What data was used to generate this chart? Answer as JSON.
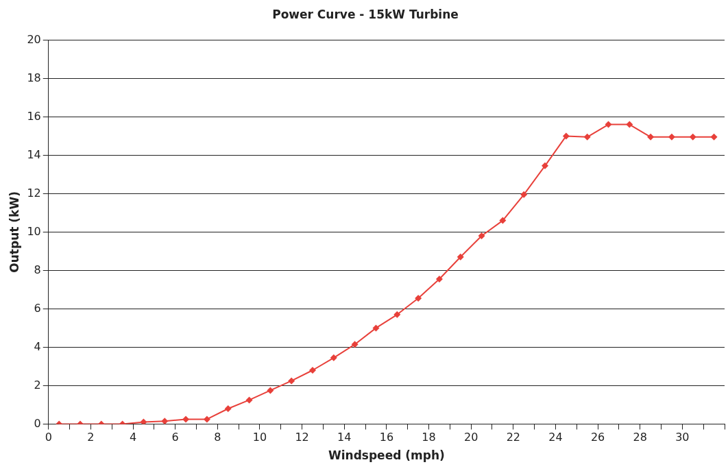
{
  "chart_data": {
    "type": "line",
    "title": "Power Curve - 15kW Turbine",
    "xlabel": "Windspeed (mph)",
    "ylabel": "Output (kW)",
    "x": [
      0.5,
      1.5,
      2.5,
      3.5,
      4.5,
      5.5,
      6.5,
      7.5,
      8.5,
      9.5,
      10.5,
      11.5,
      12.5,
      13.5,
      14.5,
      15.5,
      16.5,
      17.5,
      18.5,
      19.5,
      20.5,
      21.5,
      22.5,
      23.5,
      24.5,
      25.5,
      26.5,
      27.5,
      28.5,
      29.5,
      30.5,
      31.5
    ],
    "series": [
      {
        "color": "#e8403a",
        "values": [
          0,
          0,
          0,
          0,
          0.1,
          0.15,
          0.25,
          0.25,
          0.8,
          1.25,
          1.75,
          2.25,
          2.8,
          3.45,
          4.15,
          5.0,
          5.7,
          6.55,
          7.55,
          8.7,
          9.8,
          10.6,
          11.95,
          13.45,
          15.0,
          14.95,
          15.6,
          15.6,
          14.95,
          14.95,
          14.95,
          14.95
        ]
      }
    ],
    "xlim": [
      0,
      32
    ],
    "xticks": [
      0,
      {
        "value": 1,
        "label": null
      },
      2,
      {
        "value": 3,
        "label": null
      },
      4,
      {
        "value": 5,
        "label": null
      },
      6,
      {
        "value": 7,
        "label": null
      },
      8,
      {
        "value": 9,
        "label": null
      },
      10,
      {
        "value": 11,
        "label": null
      },
      12,
      {
        "value": 13,
        "label": null
      },
      14,
      {
        "value": 15,
        "label": null
      },
      16,
      {
        "value": 17,
        "label": null
      },
      18,
      {
        "value": 19,
        "label": null
      },
      20,
      {
        "value": 21,
        "label": null
      },
      22,
      {
        "value": 23,
        "label": null
      },
      24,
      {
        "value": 25,
        "label": null
      },
      26,
      {
        "value": 27,
        "label": null
      },
      28,
      {
        "value": 29,
        "label": null
      },
      30,
      {
        "value": 31,
        "label": null
      },
      {
        "value": 32,
        "label": null
      }
    ],
    "ylim": [
      0,
      20
    ],
    "yticks": [
      0,
      2,
      4,
      6,
      8,
      10,
      12,
      14,
      16,
      18,
      20
    ],
    "grid": "y",
    "legend": false,
    "marker": "diamond",
    "line_style": "solid"
  }
}
